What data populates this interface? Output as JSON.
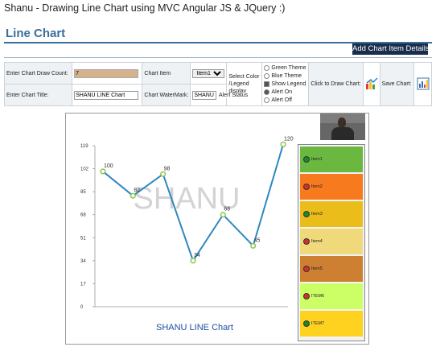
{
  "app_title": "Shanu - Drawing Line Chart using MVC Angular JS & JQuery :)",
  "section_title": "Line Chart",
  "add_button": "Add Chart Item Details",
  "controls": {
    "draw_count_label": "Enter Chart Draw Count:",
    "draw_count_value": "7",
    "chart_item_label": "Chart Item",
    "chart_item_value": "Item1",
    "select_color_label": "Select Color /Legend display",
    "theme_options": [
      "Green Theme",
      "Blue Theme"
    ],
    "show_legend_label": "Show Legend",
    "click_draw_label": "Click to Draw Chart:",
    "save_chart_label": "Save Chart:",
    "title_label": "Enter Chart Title:",
    "title_value": "SHANU LINE Chart",
    "watermark_label": "Chart WaterMark:",
    "watermark_value": "SHANU",
    "alert_status_label": "Alert Status",
    "alert_options": [
      "Alert On",
      "Alert Off"
    ]
  },
  "chart_data": {
    "type": "line",
    "title": "SHANU LINE Chart",
    "watermark": "SHANU",
    "categories": [
      "Item1",
      "Item2",
      "Item3",
      "Item4",
      "Item5",
      "ITEM6",
      "ITEM7"
    ],
    "values": [
      100,
      82,
      98,
      34,
      68,
      45,
      120
    ],
    "y_ticks": [
      0,
      17,
      34,
      51,
      68,
      85,
      102,
      119
    ],
    "ylim": [
      0,
      119
    ],
    "line_color": "#2f88c0",
    "point_color": "#8bc34a",
    "legend_placement": "right",
    "legend_colors": [
      "#6ab83f",
      "#f77a1f",
      "#ebbd1b",
      "#efd97a",
      "#cd7f32",
      "#ccff66",
      "#ffd21f"
    ],
    "legend_dot_colors": [
      "#1b8a2a",
      "#d32f2f",
      "#1b8a2a",
      "#d32f2f",
      "#d32f2f",
      "#d32f2f",
      "#1b8a2a"
    ]
  }
}
